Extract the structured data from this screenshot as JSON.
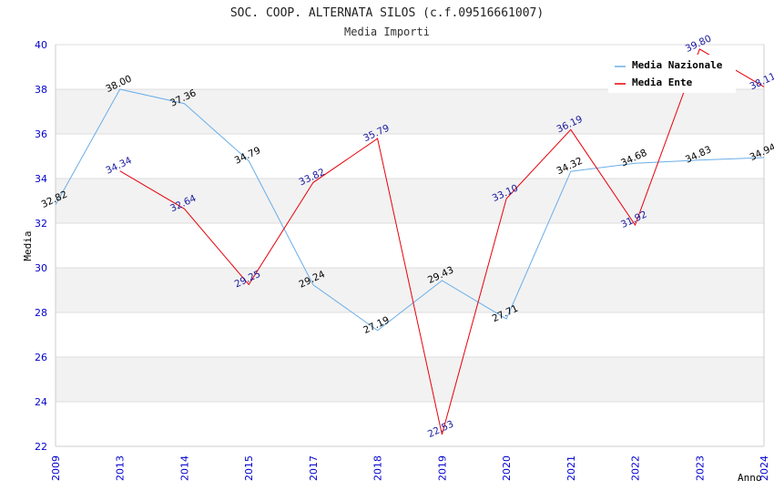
{
  "chart_data": {
    "type": "line",
    "title": "SOC. COOP. ALTERNATA SILOS (c.f.09516661007)",
    "subtitle": "Media Importi",
    "xlabel": "Anno",
    "ylabel": "Media",
    "categories": [
      "2009",
      "2013",
      "2014",
      "2015",
      "2017",
      "2018",
      "2019",
      "2020",
      "2021",
      "2022",
      "2023",
      "2024"
    ],
    "ylim": [
      22,
      40
    ],
    "yticks": [
      22,
      24,
      26,
      28,
      30,
      32,
      34,
      36,
      38,
      40
    ],
    "legend_position": "top-right",
    "series": [
      {
        "name": "Media Nazionale",
        "color": "#6aaee8",
        "label_color": "#000000",
        "values": [
          32.82,
          38.0,
          37.36,
          34.79,
          29.24,
          27.19,
          29.43,
          27.71,
          34.32,
          34.68,
          34.83,
          34.94
        ],
        "labels": [
          "32.82",
          "38.00",
          "37.36",
          "34.79",
          "29.24",
          "27.19",
          "29.43",
          "27.71",
          "34.32",
          "34.68",
          "34.83",
          "34.94"
        ]
      },
      {
        "name": "Media Ente",
        "color": "#e8000a",
        "label_color": "#1a1aa0",
        "values": [
          null,
          34.34,
          32.64,
          29.25,
          33.82,
          35.79,
          22.53,
          33.1,
          36.19,
          31.92,
          39.8,
          38.11
        ],
        "labels": [
          null,
          "34.34",
          "32.64",
          "29.25",
          "33.82",
          "35.79",
          "22.53",
          "33.10",
          "36.19",
          "31.92",
          "39.80",
          "38.11"
        ]
      }
    ],
    "colors": {
      "axis_text": "#0000cc",
      "band": "#f2f2f2",
      "grid": "#dddddd"
    }
  }
}
